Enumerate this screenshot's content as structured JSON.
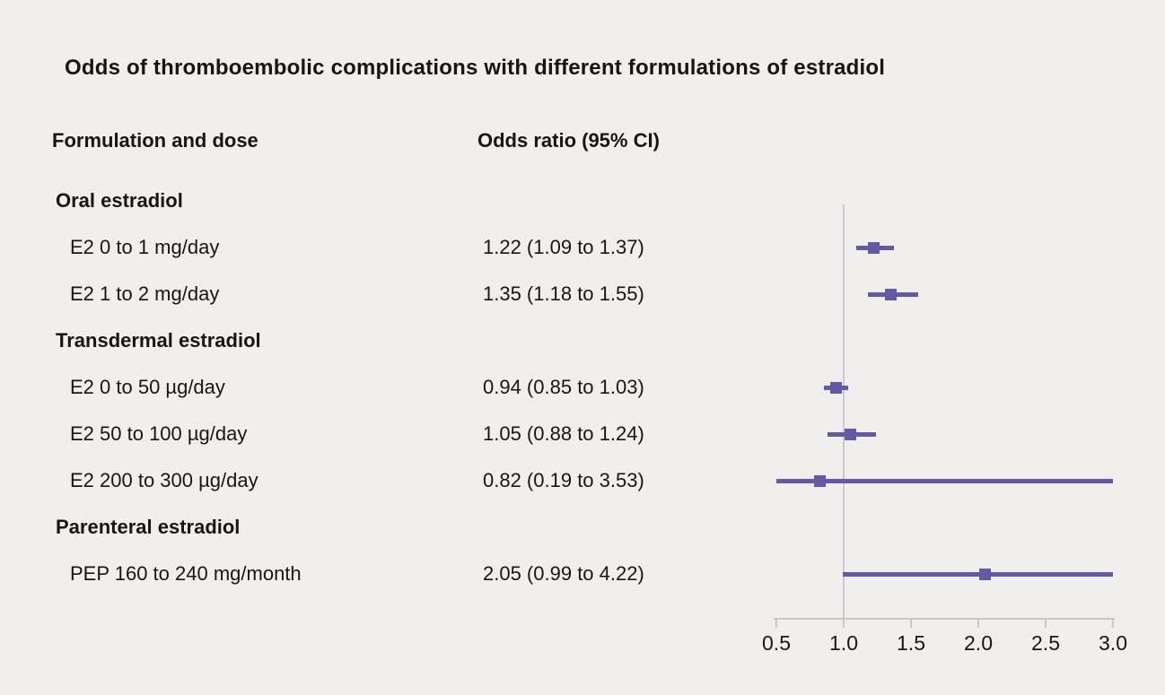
{
  "chart_data": {
    "type": "forest",
    "title": "Odds of thromboembolic complications with different formulations of estradiol",
    "column_headers": {
      "formulation": "Formulation and dose",
      "odds_ratio": "Odds ratio (95% CI)"
    },
    "xlabel": "",
    "ylabel": "",
    "xlim": [
      0.5,
      3.0
    ],
    "x_ticks": [
      "0.5",
      "1.0",
      "1.5",
      "2.0",
      "2.5",
      "3.0"
    ],
    "reference_x": 1.0,
    "grid": false,
    "legend_position": "none",
    "rows": [
      {
        "type": "group",
        "label": "Oral estradiol"
      },
      {
        "type": "item",
        "label": "E2 0 to 1 mg/day",
        "or_text": "1.22 (1.09 to 1.37)",
        "est": 1.22,
        "lo": 1.09,
        "hi": 1.37
      },
      {
        "type": "item",
        "label": "E2 1 to 2 mg/day",
        "or_text": "1.35 (1.18 to 1.55)",
        "est": 1.35,
        "lo": 1.18,
        "hi": 1.55
      },
      {
        "type": "group",
        "label": "Transdermal estradiol"
      },
      {
        "type": "item",
        "label": "E2 0 to 50 µg/day",
        "or_text": "0.94 (0.85 to 1.03)",
        "est": 0.94,
        "lo": 0.85,
        "hi": 1.03
      },
      {
        "type": "item",
        "label": "E2 50 to 100 µg/day",
        "or_text": "1.05 (0.88 to 1.24)",
        "est": 1.05,
        "lo": 0.88,
        "hi": 1.24
      },
      {
        "type": "item",
        "label": "E2 200 to 300 µg/day",
        "or_text": "0.82 (0.19 to 3.53)",
        "est": 0.82,
        "lo": 0.19,
        "hi": 3.53
      },
      {
        "type": "group",
        "label": "Parenteral estradiol"
      },
      {
        "type": "item",
        "label": "PEP 160 to 240 mg/month",
        "or_text": "2.05 (0.99 to 4.22)",
        "est": 2.05,
        "lo": 0.99,
        "hi": 4.22
      }
    ],
    "colors": {
      "marker": "#625aa5",
      "ci_line": "#625aa5",
      "reference_line": "#c9c7d8",
      "axis": "#cac8c5",
      "background": "#f0efed",
      "text": "#161616"
    }
  }
}
